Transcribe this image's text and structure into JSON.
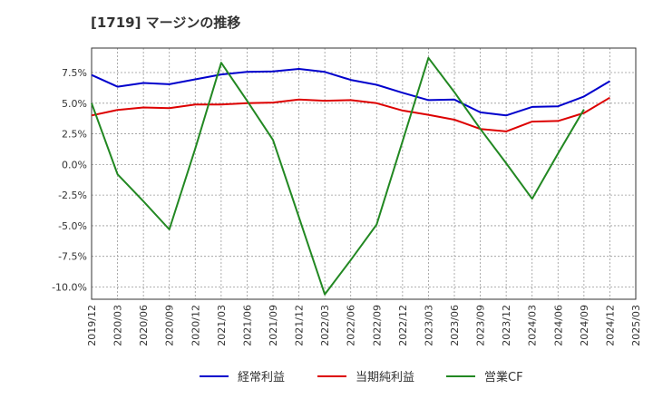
{
  "chart_data": {
    "type": "line",
    "title": "[1719]  マージンの推移",
    "x": [
      "2019/12",
      "2020/03",
      "2020/06",
      "2020/09",
      "2020/12",
      "2021/03",
      "2021/06",
      "2021/09",
      "2021/12",
      "2022/03",
      "2022/06",
      "2022/09",
      "2022/12",
      "2023/03",
      "2023/06",
      "2023/09",
      "2023/12",
      "2024/03",
      "2024/06",
      "2024/09",
      "2024/12",
      "2025/03"
    ],
    "series": [
      {
        "name": "経常利益",
        "color": "#0000cc",
        "values": [
          7.3,
          6.35,
          6.65,
          6.55,
          6.95,
          7.35,
          7.55,
          7.6,
          7.8,
          7.55,
          6.9,
          6.5,
          5.85,
          5.25,
          5.3,
          4.25,
          4.0,
          4.7,
          4.75,
          5.55,
          6.8,
          null
        ]
      },
      {
        "name": "当期純利益",
        "color": "#dd0000",
        "values": [
          4.0,
          4.45,
          4.65,
          4.6,
          4.9,
          4.9,
          5.0,
          5.05,
          5.3,
          5.2,
          5.25,
          5.0,
          4.4,
          4.05,
          3.65,
          2.9,
          2.7,
          3.5,
          3.55,
          4.2,
          5.45,
          null
        ]
      },
      {
        "name": "営業CF",
        "color": "#228822",
        "values": [
          5.0,
          -0.8,
          -3.0,
          -5.3,
          1.3,
          8.3,
          5.2,
          2.0,
          -4.3,
          -10.6,
          -7.8,
          -4.9,
          1.9,
          8.7,
          5.9,
          2.9,
          0.1,
          -2.8,
          0.9,
          4.5,
          null,
          null
        ]
      }
    ],
    "yticks": [
      7.5,
      5.0,
      2.5,
      0.0,
      -2.5,
      -5.0,
      -7.5,
      -10.0
    ],
    "ytick_labels": [
      "7.5%",
      "5.0%",
      "2.5%",
      "0.0%",
      "-2.5%",
      "-5.0%",
      "-7.5%",
      "-10.0%"
    ],
    "ylim": [
      -11.0,
      9.5
    ],
    "grid": true,
    "legend": "bottom"
  }
}
